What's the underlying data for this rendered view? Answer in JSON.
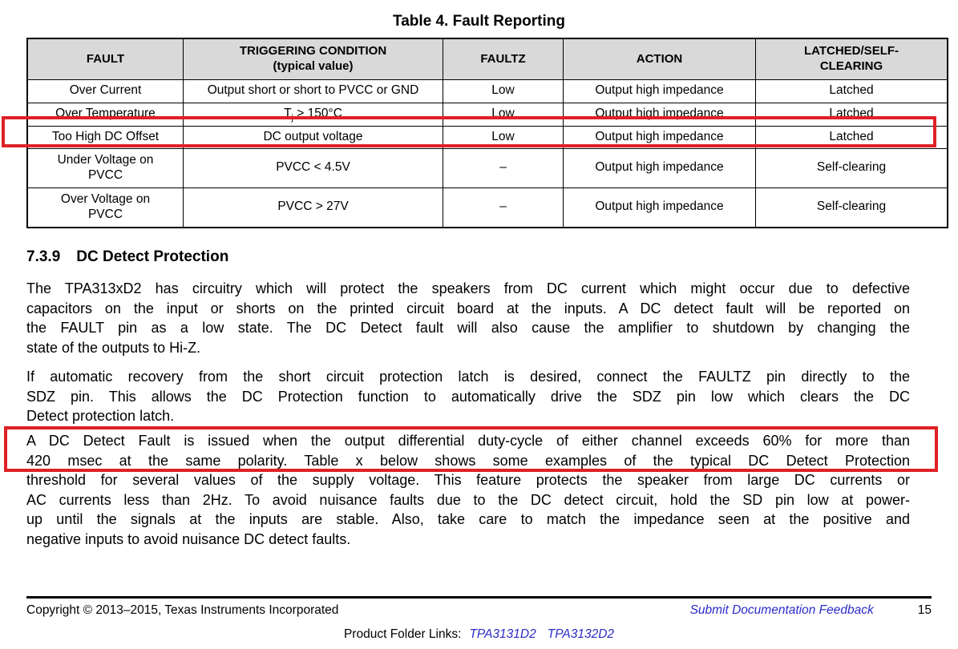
{
  "colors": {
    "annotation_red": "#DE2126",
    "link_blue": "#2B2BC8",
    "table_header_bg": "#D9D9D9"
  },
  "table_title": "Table 4. Fault Reporting",
  "fault_table": {
    "headers": [
      {
        "lines": [
          "FAULT"
        ]
      },
      {
        "lines": [
          "TRIGGERING CONDITION",
          "(typical value)"
        ]
      },
      {
        "lines": [
          "FAULTZ"
        ]
      },
      {
        "lines": [
          "ACTION"
        ]
      },
      {
        "lines": [
          "LATCHED/SELF-",
          "CLEARING"
        ]
      }
    ],
    "rows": [
      [
        "Over Current",
        "Output short or short to PVCC or GND",
        "Low",
        "Output high impedance",
        "Latched"
      ],
      [
        "Over Temperature",
        {
          "segments": [
            {
              "t": "T"
            },
            {
              "t": "j",
              "sub": true
            },
            {
              "t": " > 150°C"
            }
          ]
        },
        "Low",
        "Output high impedance",
        "Latched"
      ],
      [
        "Too High DC Offset",
        "DC output voltage",
        "Low",
        "Output high impedance",
        "Latched"
      ],
      [
        {
          "lines": [
            "Under Voltage on",
            "PVCC"
          ]
        },
        "PVCC < 4.5V",
        "–",
        "Output high impedance",
        "Self-clearing"
      ],
      [
        {
          "lines": [
            "Over Voltage on",
            "PVCC"
          ]
        },
        "PVCC > 27V",
        "–",
        "Output high impedance",
        "Self-clearing"
      ]
    ]
  },
  "section": {
    "number": "7.3.9",
    "title": "DC Detect Protection"
  },
  "paragraphs": [
    {
      "lines": [
        "The TPA313xD2 has circuitry which will protect the speakers from DC current which might occur due to defective",
        "capacitors on the input or shorts on the printed circuit board at the inputs. A DC detect fault will be reported on",
        "the FAULT pin as a low state. The DC Detect fault will also cause the amplifier to shutdown by changing the",
        "state of the outputs to Hi-Z."
      ]
    },
    {
      "lines": [
        "If automatic recovery from the short circuit protection latch is desired, connect the FAULTZ pin directly to the",
        "SDZ pin. This allows the DC Protection function to automatically drive the SDZ pin low which clears the DC",
        "Detect protection latch."
      ]
    },
    {
      "lines": [
        "A DC Detect Fault is issued when the output differential duty-cycle of either channel exceeds 60% for more than",
        "420 msec at the same polarity. Table x below shows some examples of the typical DC Detect Protection",
        "threshold for several values of the supply voltage. This feature protects the speaker from large DC currents or",
        "AC currents less than 2Hz. To avoid nuisance faults due to the DC detect circuit, hold the SD pin low at power-",
        "up until the signals at the inputs are stable. Also, take care to match the impedance seen at the positive and",
        "negative inputs to avoid nuisance DC detect faults."
      ]
    }
  ],
  "footer": {
    "copyright": "Copyright © 2013–2015, Texas Instruments Incorporated",
    "feedback_link": "Submit Documentation Feedback",
    "page_number": "15",
    "product_folder_label": "Product Folder Links:",
    "product_links": [
      "TPA3131D2",
      "TPA3132D2"
    ]
  }
}
